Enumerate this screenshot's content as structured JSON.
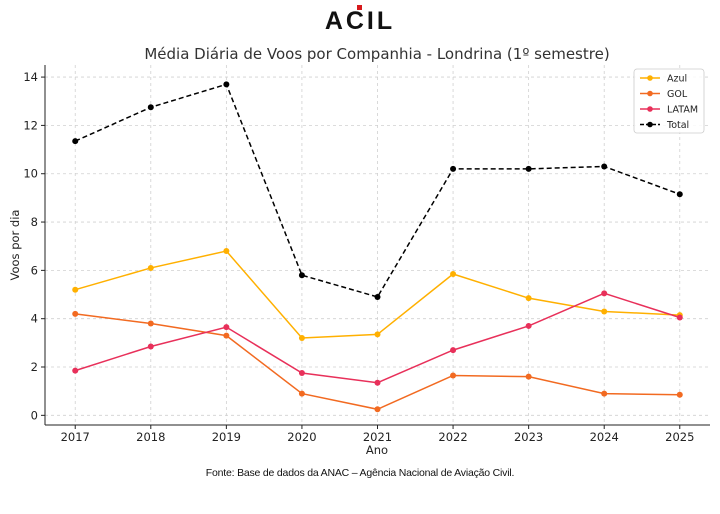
{
  "brand": {
    "logo_text": "ACIL",
    "accent_color": "#d7191c",
    "text_color": "#111111"
  },
  "source_note": "Fonte: Base de dados da ANAC – Agência Nacional de Aviação Civil.",
  "chart_data": {
    "type": "line",
    "title": "Média Diária de Voos por Companhia - Londrina (1º semestre)",
    "xlabel": "Ano",
    "ylabel": "Voos por dia",
    "x": [
      2017,
      2018,
      2019,
      2020,
      2021,
      2022,
      2023,
      2024,
      2025
    ],
    "x_tick_labels": [
      "2017",
      "2018",
      "2019",
      "2020",
      "2021",
      "2022",
      "2023",
      "2024",
      "2025"
    ],
    "y_ticks": [
      0,
      2,
      4,
      6,
      8,
      10,
      12,
      14
    ],
    "y_tick_labels": [
      "0",
      "2",
      "4",
      "6",
      "8",
      "10",
      "12",
      "14"
    ],
    "ylim": [
      -0.4,
      14.5
    ],
    "grid": true,
    "legend_position": "top-right",
    "series": [
      {
        "name": "Azul",
        "color": "#FFB000",
        "dashed": false,
        "values": [
          5.2,
          6.1,
          6.8,
          3.2,
          3.35,
          5.85,
          4.85,
          4.3,
          4.15
        ]
      },
      {
        "name": "GOL",
        "color": "#F26A21",
        "dashed": false,
        "values": [
          4.2,
          3.8,
          3.3,
          0.9,
          0.25,
          1.65,
          1.6,
          0.9,
          0.85
        ]
      },
      {
        "name": "LATAM",
        "color": "#E8305A",
        "dashed": false,
        "values": [
          1.85,
          2.85,
          3.65,
          1.75,
          1.35,
          2.7,
          3.7,
          5.05,
          4.05
        ]
      },
      {
        "name": "Total",
        "color": "#000000",
        "dashed": true,
        "values": [
          11.35,
          12.75,
          13.7,
          5.8,
          4.9,
          10.2,
          10.2,
          10.3,
          9.15
        ]
      }
    ]
  }
}
